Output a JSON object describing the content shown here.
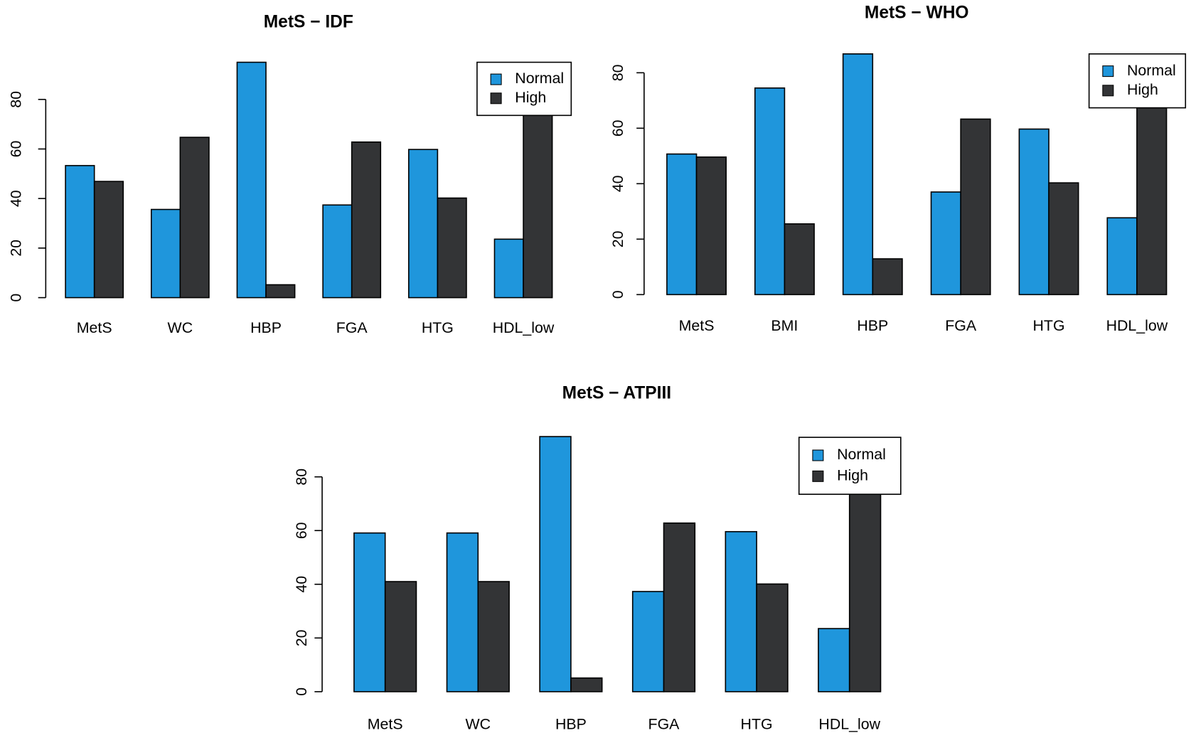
{
  "chart_data": [
    {
      "type": "bar",
      "title": "MetS − IDF",
      "categories": [
        "MetS",
        "WC",
        "HBP",
        "FGA",
        "HTG",
        "HDL_low"
      ],
      "series": [
        {
          "name": "Normal",
          "color": "#1f96dc",
          "values": [
            53.3,
            35.6,
            95,
            37.4,
            59.8,
            23.6
          ]
        },
        {
          "name": "High",
          "color": "#333436",
          "values": [
            46.9,
            64.7,
            5.2,
            62.8,
            40.2,
            76.4
          ]
        }
      ],
      "ylim": [
        0,
        95
      ],
      "yticks": [
        0,
        20,
        40,
        60,
        80
      ],
      "legend": "topright"
    },
    {
      "type": "bar",
      "title": "MetS − WHO",
      "categories": [
        "MetS",
        "BMI",
        "HBP",
        "FGA",
        "HTG",
        "HDL_low"
      ],
      "series": [
        {
          "name": "Normal",
          "color": "#1f96dc",
          "values": [
            50.7,
            74.5,
            86.8,
            37,
            59.7,
            27.7
          ]
        },
        {
          "name": "High",
          "color": "#333436",
          "values": [
            49.6,
            25.5,
            12.9,
            63.3,
            40.3,
            72.3
          ]
        }
      ],
      "ylim": [
        0,
        86.8
      ],
      "yticks": [
        0,
        20,
        40,
        60,
        80
      ],
      "legend": "topright"
    },
    {
      "type": "bar",
      "title": "MetS − ATPIII",
      "categories": [
        "MetS",
        "WC",
        "HBP",
        "FGA",
        "HTG",
        "HDL_low"
      ],
      "series": [
        {
          "name": "Normal",
          "color": "#1f96dc",
          "values": [
            59.1,
            59.1,
            95,
            37.3,
            59.6,
            23.5
          ]
        },
        {
          "name": "High",
          "color": "#333436",
          "values": [
            41,
            41,
            5.1,
            62.8,
            40.1,
            76.5
          ]
        }
      ],
      "ylim": [
        0,
        95
      ],
      "yticks": [
        0,
        20,
        40,
        60,
        80
      ],
      "legend": "topright"
    }
  ]
}
